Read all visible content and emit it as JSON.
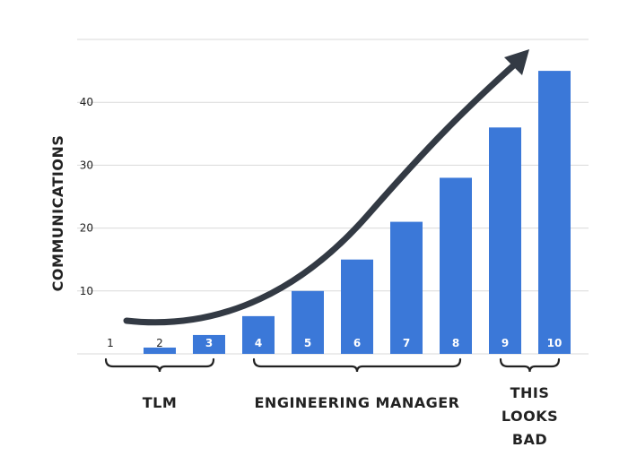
{
  "chart_data": {
    "type": "bar",
    "categories": [
      "1",
      "2",
      "3",
      "4",
      "5",
      "6",
      "7",
      "8",
      "9",
      "10"
    ],
    "values": [
      0,
      1,
      3,
      6,
      10,
      15,
      21,
      28,
      36,
      45
    ],
    "title": "",
    "xlabel": "",
    "ylabel": "COMMUNICATIONS",
    "ylim": [
      0,
      50
    ],
    "yticks": [
      10,
      20,
      30,
      40
    ],
    "grid": true,
    "legend": "none",
    "bar_color": "#3b78d8",
    "arrow_color": "#333a44",
    "groups": [
      {
        "label_lines": [
          "TLM"
        ],
        "from": 1,
        "to": 3
      },
      {
        "label_lines": [
          "ENGINEERING MANAGER"
        ],
        "from": 4,
        "to": 8
      },
      {
        "label_lines": [
          "THIS",
          "LOOKS",
          "BAD"
        ],
        "from": 9,
        "to": 10
      }
    ]
  }
}
